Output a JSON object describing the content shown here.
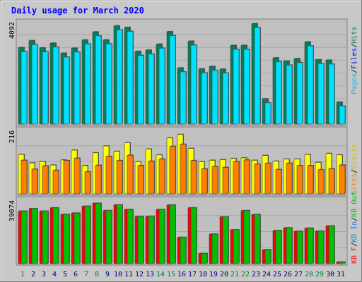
{
  "chart_data": [
    {
      "type": "bar",
      "title": "Daily usage for March 2020",
      "ymax_label": "4092",
      "ylim": [
        0,
        4092
      ],
      "categories": [
        "1",
        "2",
        "3",
        "4",
        "5",
        "6",
        "7",
        "8",
        "9",
        "10",
        "11",
        "12",
        "13",
        "14",
        "15",
        "16",
        "17",
        "18",
        "19",
        "20",
        "21",
        "22",
        "23",
        "24",
        "25",
        "26",
        "27",
        "28",
        "29",
        "30",
        "31"
      ],
      "weekend_days": [
        "1",
        "7",
        "8",
        "14",
        "15",
        "21",
        "22",
        "28",
        "29"
      ],
      "series": [
        {
          "name": "Hits",
          "color": "#00805c",
          "values": [
            3060,
            3340,
            3050,
            3240,
            2840,
            3040,
            3370,
            3690,
            3370,
            3930,
            3870,
            2910,
            2960,
            3200,
            3700,
            2250,
            3320,
            2210,
            2310,
            2200,
            3150,
            3150,
            4020,
            1010,
            2650,
            2520,
            2620,
            3290,
            2580,
            2560,
            880
          ]
        },
        {
          "name": "Files",
          "color": "#0000ff",
          "values": [
            3060,
            3340,
            3050,
            3240,
            2840,
            3040,
            3370,
            3690,
            3370,
            3930,
            3870,
            2910,
            2960,
            3200,
            3700,
            2250,
            3320,
            2210,
            2310,
            2200,
            3150,
            3150,
            4020,
            1010,
            2650,
            2520,
            2620,
            3290,
            2580,
            2560,
            880
          ]
        },
        {
          "name": "Pages",
          "color": "#00e0ff",
          "values": [
            2900,
            3180,
            2890,
            3080,
            2680,
            2880,
            3210,
            3530,
            3210,
            3770,
            3710,
            2750,
            2800,
            3040,
            3540,
            2090,
            3160,
            2050,
            2150,
            2040,
            2990,
            2990,
            3860,
            850,
            2490,
            2360,
            2460,
            3130,
            2420,
            2400,
            720
          ]
        }
      ]
    },
    {
      "type": "bar",
      "ymax_label": "216",
      "ylim": [
        0,
        216
      ],
      "series": [
        {
          "name": "Visits",
          "color": "#ffff00",
          "values": [
            133,
            104,
            109,
            97,
            114,
            147,
            95,
            138,
            161,
            143,
            172,
            108,
            151,
            131,
            188,
            200,
            153,
            108,
            113,
            115,
            119,
            121,
            113,
            129,
            110,
            117,
            117,
            132,
            106,
            136,
            131
          ]
        },
        {
          "name": "Sites",
          "color": "#ff8000",
          "values": [
            113,
            83,
            94,
            79,
            112,
            120,
            74,
            96,
            126,
            112,
            130,
            95,
            110,
            117,
            160,
            167,
            112,
            84,
            92,
            89,
            109,
            114,
            100,
            103,
            82,
            103,
            95,
            95,
            81,
            85,
            97
          ]
        }
      ]
    },
    {
      "type": "bar",
      "ymax_label": "39074",
      "ylim": [
        0,
        39074
      ],
      "series": [
        {
          "name": "KB F",
          "color": "#ff0000",
          "values": [
            32000,
            33500,
            32000,
            34000,
            30000,
            30800,
            35000,
            36800,
            32300,
            35800,
            33000,
            28700,
            28800,
            33000,
            35700,
            16000,
            34000,
            6200,
            18000,
            28500,
            20600,
            32300,
            29900,
            8500,
            20200,
            21800,
            19700,
            21600,
            19800,
            23000,
            1000
          ]
        },
        {
          "name": "KB In",
          "color": "#0080ff",
          "values": [
            0,
            0,
            0,
            0,
            0,
            0,
            0,
            0,
            0,
            0,
            0,
            0,
            0,
            0,
            0,
            0,
            0,
            0,
            0,
            0,
            0,
            0,
            0,
            0,
            0,
            0,
            0,
            0,
            0,
            0,
            0
          ]
        },
        {
          "name": "KB Out",
          "color": "#00c000",
          "values": [
            32000,
            33500,
            32000,
            34000,
            30000,
            30800,
            35000,
            36800,
            32300,
            35800,
            33000,
            28700,
            28800,
            33000,
            35700,
            16000,
            34000,
            6200,
            18000,
            28500,
            20600,
            32300,
            29900,
            8500,
            20200,
            21800,
            19700,
            21600,
            19800,
            23000,
            1000
          ]
        }
      ]
    }
  ],
  "panel_colors": {
    "page_background": "#c8c8c8",
    "plot_background": "#c0c0c0",
    "title_color": "#0000ff",
    "day_label_color": "#000080",
    "weekend_label_color": "#008040"
  }
}
